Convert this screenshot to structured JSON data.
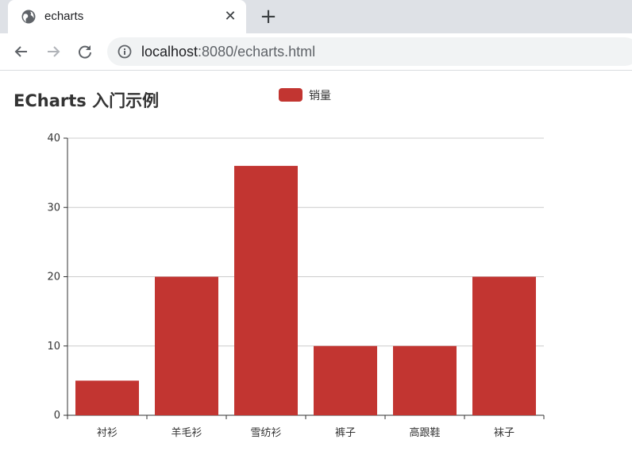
{
  "browser": {
    "tab_title": "echarts",
    "new_tab_label": "+",
    "close_label": "✕",
    "url_host": "localhost",
    "url_rest": ":8080/echarts.html"
  },
  "legend": {
    "label": "销量",
    "color": "#c23531"
  },
  "chart_data": {
    "type": "bar",
    "title": "ECharts 入门示例",
    "categories": [
      "衬衫",
      "羊毛衫",
      "雪纺衫",
      "裤子",
      "高跟鞋",
      "袜子"
    ],
    "series": [
      {
        "name": "销量",
        "values": [
          5,
          20,
          36,
          10,
          10,
          20
        ],
        "color": "#c23531"
      }
    ],
    "ylim": [
      0,
      40
    ],
    "yticks": [
      0,
      10,
      20,
      30,
      40
    ],
    "grid": true,
    "legend_position": "top-center"
  }
}
